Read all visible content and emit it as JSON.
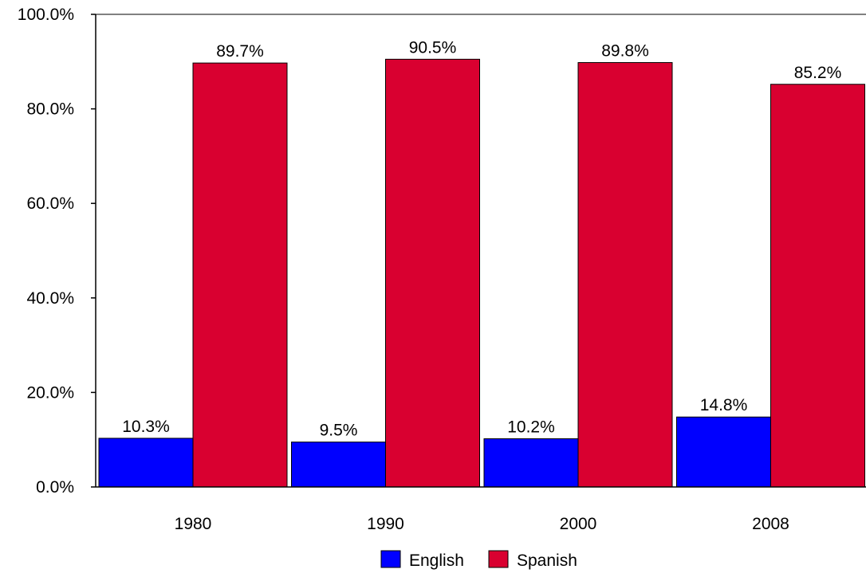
{
  "chart_data": {
    "type": "bar",
    "title": "",
    "xlabel": "",
    "ylabel": "",
    "categories": [
      "1980",
      "1990",
      "2000",
      "2008"
    ],
    "series": [
      {
        "name": "English",
        "values": [
          10.3,
          9.5,
          10.2,
          14.8
        ],
        "labels": [
          "10.3%",
          "9.5%",
          "10.2%",
          "14.8%"
        ],
        "color": "#0000ff"
      },
      {
        "name": "Spanish",
        "values": [
          89.7,
          90.5,
          89.8,
          85.2
        ],
        "labels": [
          "89.7%",
          "90.5%",
          "89.8%",
          "85.2%"
        ],
        "color": "#d90030"
      }
    ],
    "ylim": [
      0,
      100
    ],
    "yticks": [
      0,
      20,
      40,
      60,
      80,
      100
    ],
    "ytick_labels": [
      "0.0%",
      "20.0%",
      "40.0%",
      "60.0%",
      "80.0%",
      "100.0%"
    ],
    "grid": false,
    "legend_position": "bottom"
  }
}
